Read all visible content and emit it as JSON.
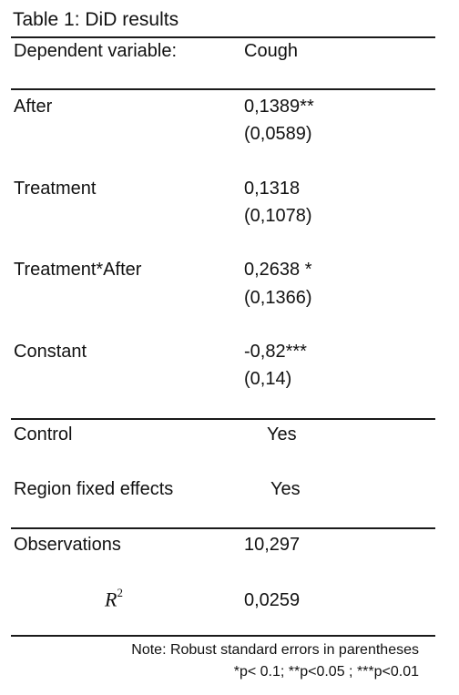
{
  "caption": "Table 1: DiD results",
  "header": {
    "label": "Dependent variable:",
    "value": "Cough"
  },
  "coefficients": [
    {
      "label": "After",
      "estimate": "0,1389**",
      "se": "(0,0589)"
    },
    {
      "label": "Treatment",
      "estimate": "0,1318",
      "se": "(0,1078)"
    },
    {
      "label": "Treatment*After",
      "estimate": "0,2638 *",
      "se": "(0,1366)"
    },
    {
      "label": "Constant",
      "estimate": "-0,82***",
      "se": "(0,14)"
    }
  ],
  "controls": [
    {
      "label": "Control",
      "value": "Yes"
    },
    {
      "label": "Region fixed effects",
      "value": "Yes"
    }
  ],
  "stats": {
    "observations_label": "Observations",
    "observations_value": "10,297",
    "r2_symbol": "R",
    "r2_superscript": "2",
    "r2_value": "0,0259"
  },
  "notes": {
    "line1": "Note: Robust standard errors in parentheses",
    "line2": "*p< 0.1;  **p<0.05 ; ***p<0.01"
  }
}
